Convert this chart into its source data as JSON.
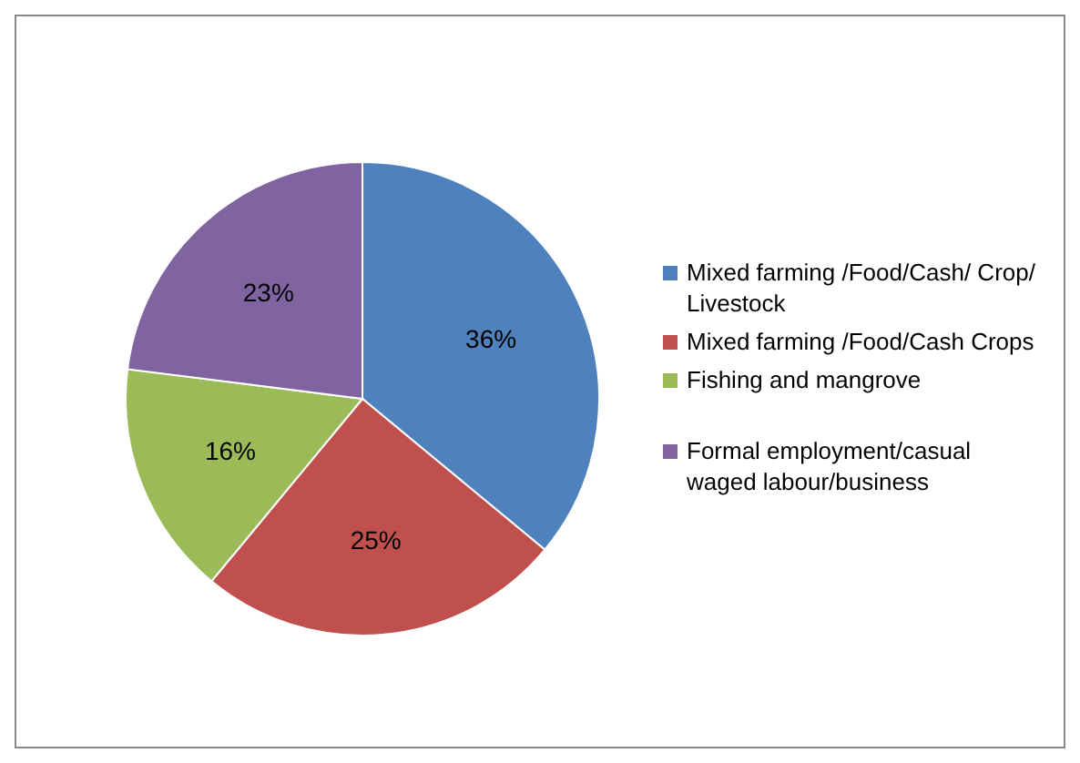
{
  "chart_data": {
    "type": "pie",
    "categories": [
      "Mixed farming /Food/Cash/ Crop/ Livestock",
      "Mixed farming /Food/Cash Crops",
      "Fishing and mangrove",
      "Formal employment/casual waged labour/business"
    ],
    "values": [
      36,
      25,
      16,
      23
    ],
    "colors": [
      "#4f81bd",
      "#c0504d",
      "#9bbb59",
      "#8064a2"
    ],
    "value_labels": [
      "36%",
      "25%",
      "16%",
      "23%"
    ],
    "legend": "right"
  }
}
